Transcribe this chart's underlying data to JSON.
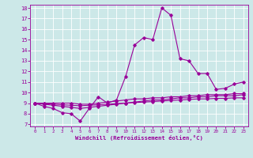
{
  "background_color": "#cce8e8",
  "line_color": "#990099",
  "xlim": [
    -0.5,
    23.5
  ],
  "ylim": [
    6.8,
    18.3
  ],
  "yticks": [
    7,
    8,
    9,
    10,
    11,
    12,
    13,
    14,
    15,
    16,
    17,
    18
  ],
  "xticks": [
    0,
    1,
    2,
    3,
    4,
    5,
    6,
    7,
    8,
    9,
    10,
    11,
    12,
    13,
    14,
    15,
    16,
    17,
    18,
    19,
    20,
    21,
    22,
    23
  ],
  "xlabel": "Windchill (Refroidissement éolien,°C)",
  "lines": [
    {
      "x": [
        0,
        1,
        2,
        3,
        4,
        5,
        6,
        7,
        8,
        9,
        10,
        11,
        12,
        13,
        14,
        15,
        16,
        17,
        18,
        19,
        20,
        21,
        22,
        23
      ],
      "y": [
        9.0,
        8.7,
        8.5,
        8.1,
        8.0,
        7.3,
        8.5,
        9.6,
        9.0,
        9.3,
        11.5,
        14.5,
        15.2,
        15.0,
        18.0,
        17.3,
        13.2,
        13.0,
        11.8,
        11.8,
        10.3,
        10.4,
        10.8,
        11.0
      ]
    },
    {
      "x": [
        0,
        1,
        2,
        3,
        4,
        5,
        6,
        7,
        8,
        9,
        10,
        11,
        12,
        13,
        14,
        15,
        16,
        17,
        18,
        19,
        20,
        21,
        22,
        23
      ],
      "y": [
        9.0,
        9.0,
        9.0,
        9.0,
        9.0,
        8.9,
        8.9,
        9.0,
        9.1,
        9.2,
        9.3,
        9.4,
        9.4,
        9.5,
        9.5,
        9.6,
        9.6,
        9.7,
        9.7,
        9.8,
        9.8,
        9.8,
        9.9,
        9.9
      ]
    },
    {
      "x": [
        0,
        1,
        2,
        3,
        4,
        5,
        6,
        7,
        8,
        9,
        10,
        11,
        12,
        13,
        14,
        15,
        16,
        17,
        18,
        19,
        20,
        21,
        22,
        23
      ],
      "y": [
        9.0,
        8.9,
        8.8,
        8.7,
        8.6,
        8.5,
        8.6,
        8.7,
        8.8,
        8.9,
        9.0,
        9.1,
        9.2,
        9.3,
        9.3,
        9.4,
        9.5,
        9.5,
        9.6,
        9.6,
        9.7,
        9.7,
        9.7,
        9.8
      ]
    },
    {
      "x": [
        0,
        1,
        2,
        3,
        4,
        5,
        6,
        7,
        8,
        9,
        10,
        11,
        12,
        13,
        14,
        15,
        16,
        17,
        18,
        19,
        20,
        21,
        22,
        23
      ],
      "y": [
        9.0,
        8.95,
        8.9,
        8.85,
        8.8,
        8.75,
        8.8,
        8.85,
        8.9,
        8.95,
        9.0,
        9.05,
        9.1,
        9.15,
        9.2,
        9.25,
        9.3,
        9.35,
        9.4,
        9.4,
        9.45,
        9.45,
        9.5,
        9.5
      ]
    }
  ]
}
